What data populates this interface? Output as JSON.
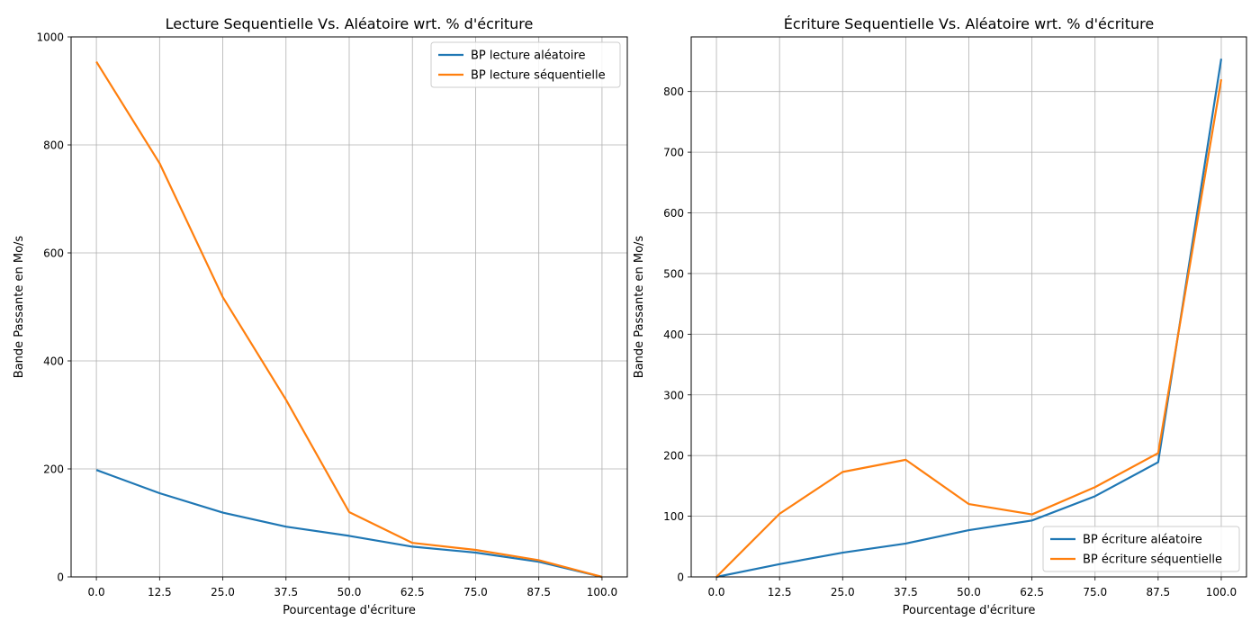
{
  "colors": {
    "random": "#1f77b4",
    "sequential": "#ff7f0e",
    "grid": "#b0b0b0"
  },
  "chart_data": [
    {
      "type": "line",
      "title": "Lecture Sequentielle Vs. Aléatoire wrt. % d'écriture",
      "xlabel": "Pourcentage d'écriture",
      "ylabel": "Bande Passante en Mo/s",
      "x": [
        0.0,
        12.5,
        25.0,
        37.5,
        50.0,
        62.5,
        75.0,
        87.5,
        100.0
      ],
      "x_tick_labels": [
        "0.0",
        "12.5",
        "25.0",
        "37.5",
        "50.0",
        "62.5",
        "75.0",
        "87.5",
        "100.0"
      ],
      "xlim": [
        -5,
        105
      ],
      "ylim": [
        0,
        1000
      ],
      "y_ticks": [
        0,
        200,
        400,
        600,
        800,
        1000
      ],
      "y_tick_labels": [
        "0",
        "200",
        "400",
        "600",
        "800",
        "1000"
      ],
      "grid": true,
      "legend_position": "top-right",
      "series": [
        {
          "name": "BP lecture aléatoire",
          "color": "#1f77b4",
          "values": [
            198,
            155,
            119,
            93,
            76,
            56,
            45,
            28,
            0
          ]
        },
        {
          "name": "BP lecture séquentielle",
          "color": "#ff7f0e",
          "values": [
            954,
            766,
            518,
            328,
            120,
            63,
            50,
            31,
            0
          ]
        }
      ]
    },
    {
      "type": "line",
      "title": "Écriture Sequentielle Vs. Aléatoire wrt. % d'écriture",
      "xlabel": "Pourcentage d'écriture",
      "ylabel": "Bande Passante en Mo/s",
      "x": [
        0.0,
        12.5,
        25.0,
        37.5,
        50.0,
        62.5,
        75.0,
        87.5,
        100.0
      ],
      "x_tick_labels": [
        "0.0",
        "12.5",
        "25.0",
        "37.5",
        "50.0",
        "62.5",
        "75.0",
        "87.5",
        "100.0"
      ],
      "xlim": [
        -5,
        105
      ],
      "ylim": [
        0,
        890
      ],
      "y_ticks": [
        0,
        100,
        200,
        300,
        400,
        500,
        600,
        700,
        800
      ],
      "y_tick_labels": [
        "0",
        "100",
        "200",
        "300",
        "400",
        "500",
        "600",
        "700",
        "800"
      ],
      "grid": true,
      "legend_position": "bottom-right",
      "series": [
        {
          "name": "BP écriture aléatoire",
          "color": "#1f77b4",
          "values": [
            0,
            21,
            40,
            55,
            77,
            93,
            133,
            189,
            854
          ]
        },
        {
          "name": "BP écriture séquentielle",
          "color": "#ff7f0e",
          "values": [
            0,
            104,
            173,
            193,
            120,
            103,
            148,
            204,
            820
          ]
        }
      ]
    }
  ]
}
